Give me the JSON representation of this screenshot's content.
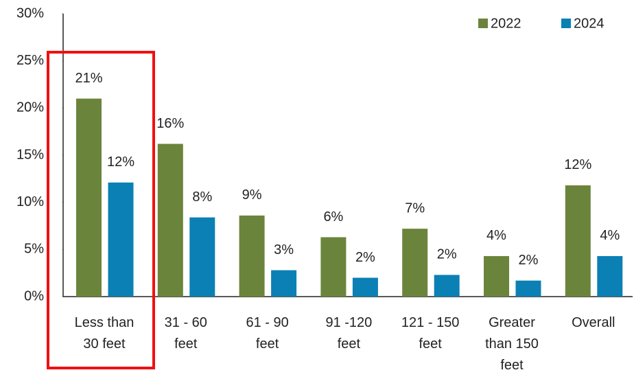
{
  "chart_data": {
    "type": "bar",
    "categories": [
      "Less than 30 feet",
      "31 - 60 feet",
      "61 - 90 feet",
      "91 -120 feet",
      "121 - 150 feet",
      "Greater than 150 feet",
      "Overall"
    ],
    "series": [
      {
        "name": "2022",
        "color": "#6b843b",
        "values": [
          21,
          16.2,
          8.6,
          6.3,
          7.2,
          4.3,
          11.8
        ],
        "value_labels": [
          "21%",
          "16%",
          "9%",
          "6%",
          "7%",
          "4%",
          "12%"
        ]
      },
      {
        "name": "2024",
        "color": "#0b80b4",
        "values": [
          12.1,
          8.4,
          2.8,
          2.0,
          2.3,
          1.7,
          4.3
        ],
        "value_labels": [
          "12%",
          "8%",
          "3%",
          "2%",
          "2%",
          "2%",
          "4%"
        ]
      }
    ],
    "ylim": [
      0,
      30
    ],
    "yticks": [
      {
        "value": 0,
        "label": "0%"
      },
      {
        "value": 5,
        "label": "5%"
      },
      {
        "value": 10,
        "label": "10%"
      },
      {
        "value": 15,
        "label": "15%"
      },
      {
        "value": 20,
        "label": "20%"
      },
      {
        "value": 25,
        "label": "25%"
      },
      {
        "value": 30,
        "label": "30%"
      }
    ],
    "legend": "top-right",
    "grid": false
  }
}
